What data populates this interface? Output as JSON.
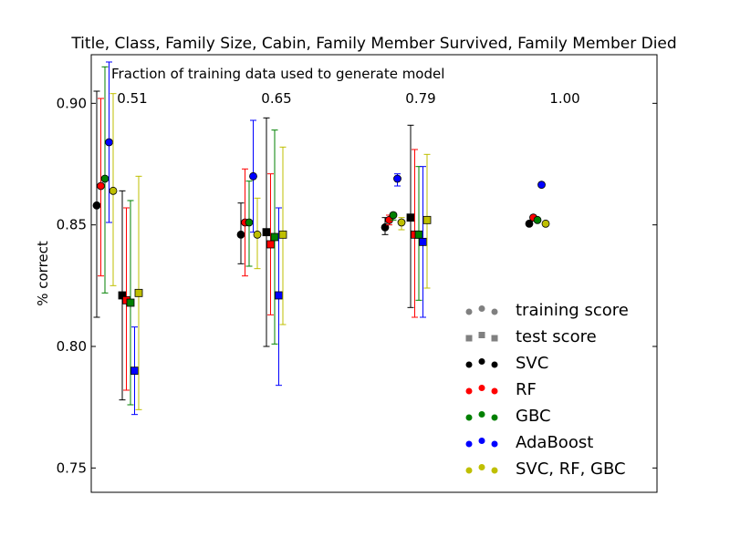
{
  "chart_data": {
    "type": "scatter",
    "title": "Title, Class, Family Size, Cabin, Family Member Survived, Family Member Died",
    "subtitle": "Fraction of training data used to generate model",
    "xlabel": "",
    "ylabel": "% correct",
    "ylim": [
      0.74,
      0.92
    ],
    "yticks": [
      "0.75",
      "0.80",
      "0.85",
      "0.90"
    ],
    "grid": false,
    "legend_position": "lower-right",
    "groups": [
      "0.51",
      "0.65",
      "0.79",
      "1.00"
    ],
    "score_types": [
      {
        "name": "training score",
        "marker": "circle"
      },
      {
        "name": "test score",
        "marker": "square"
      }
    ],
    "series": [
      {
        "name": "SVC",
        "color": "#000000",
        "train": [
          {
            "group": "0.51",
            "value": 0.858,
            "err_low": 0.812,
            "err_high": 0.905
          },
          {
            "group": "0.65",
            "value": 0.846,
            "err_low": 0.834,
            "err_high": 0.859
          },
          {
            "group": "0.79",
            "value": 0.849,
            "err_low": 0.846,
            "err_high": 0.853
          },
          {
            "group": "1.00",
            "value": 0.8505
          }
        ],
        "test": [
          {
            "group": "0.51",
            "value": 0.821,
            "err_low": 0.778,
            "err_high": 0.864
          },
          {
            "group": "0.65",
            "value": 0.847,
            "err_low": 0.8,
            "err_high": 0.894
          },
          {
            "group": "0.79",
            "value": 0.853,
            "err_low": 0.816,
            "err_high": 0.891
          }
        ]
      },
      {
        "name": "RF",
        "color": "#ff0000",
        "train": [
          {
            "group": "0.51",
            "value": 0.866,
            "err_low": 0.829,
            "err_high": 0.902
          },
          {
            "group": "0.65",
            "value": 0.851,
            "err_low": 0.829,
            "err_high": 0.873
          },
          {
            "group": "0.79",
            "value": 0.852,
            "err_low": 0.85,
            "err_high": 0.854
          },
          {
            "group": "1.00",
            "value": 0.853
          }
        ],
        "test": [
          {
            "group": "0.51",
            "value": 0.819,
            "err_low": 0.782,
            "err_high": 0.857
          },
          {
            "group": "0.65",
            "value": 0.842,
            "err_low": 0.813,
            "err_high": 0.871
          },
          {
            "group": "0.79",
            "value": 0.846,
            "err_low": 0.812,
            "err_high": 0.881
          }
        ]
      },
      {
        "name": "GBC",
        "color": "#008000",
        "train": [
          {
            "group": "0.51",
            "value": 0.869,
            "err_low": 0.822,
            "err_high": 0.915
          },
          {
            "group": "0.65",
            "value": 0.851,
            "err_low": 0.833,
            "err_high": 0.868
          },
          {
            "group": "0.79",
            "value": 0.854,
            "err_low": 0.852,
            "err_high": 0.855
          },
          {
            "group": "1.00",
            "value": 0.852
          }
        ],
        "test": [
          {
            "group": "0.51",
            "value": 0.818,
            "err_low": 0.776,
            "err_high": 0.86
          },
          {
            "group": "0.65",
            "value": 0.845,
            "err_low": 0.801,
            "err_high": 0.889
          },
          {
            "group": "0.79",
            "value": 0.846,
            "err_low": 0.819,
            "err_high": 0.874
          }
        ]
      },
      {
        "name": "AdaBoost",
        "color": "#0000ff",
        "train": [
          {
            "group": "0.51",
            "value": 0.884,
            "err_low": 0.851,
            "err_high": 0.917
          },
          {
            "group": "0.65",
            "value": 0.87,
            "err_low": 0.847,
            "err_high": 0.893
          },
          {
            "group": "0.79",
            "value": 0.869,
            "err_low": 0.866,
            "err_high": 0.871
          },
          {
            "group": "1.00",
            "value": 0.8665
          }
        ],
        "test": [
          {
            "group": "0.51",
            "value": 0.79,
            "err_low": 0.772,
            "err_high": 0.808
          },
          {
            "group": "0.65",
            "value": 0.821,
            "err_low": 0.784,
            "err_high": 0.857
          },
          {
            "group": "0.79",
            "value": 0.843,
            "err_low": 0.812,
            "err_high": 0.874
          }
        ]
      },
      {
        "name": "SVC, RF, GBC",
        "color": "#bfbf00",
        "train": [
          {
            "group": "0.51",
            "value": 0.864,
            "err_low": 0.825,
            "err_high": 0.904
          },
          {
            "group": "0.65",
            "value": 0.846,
            "err_low": 0.832,
            "err_high": 0.861
          },
          {
            "group": "0.79",
            "value": 0.851,
            "err_low": 0.848,
            "err_high": 0.853
          },
          {
            "group": "1.00",
            "value": 0.8505
          }
        ],
        "test": [
          {
            "group": "0.51",
            "value": 0.822,
            "err_low": 0.774,
            "err_high": 0.87
          },
          {
            "group": "0.65",
            "value": 0.846,
            "err_low": 0.809,
            "err_high": 0.882
          },
          {
            "group": "0.79",
            "value": 0.852,
            "err_low": 0.824,
            "err_high": 0.879
          }
        ]
      }
    ]
  },
  "legend_marker_color": "#808080"
}
